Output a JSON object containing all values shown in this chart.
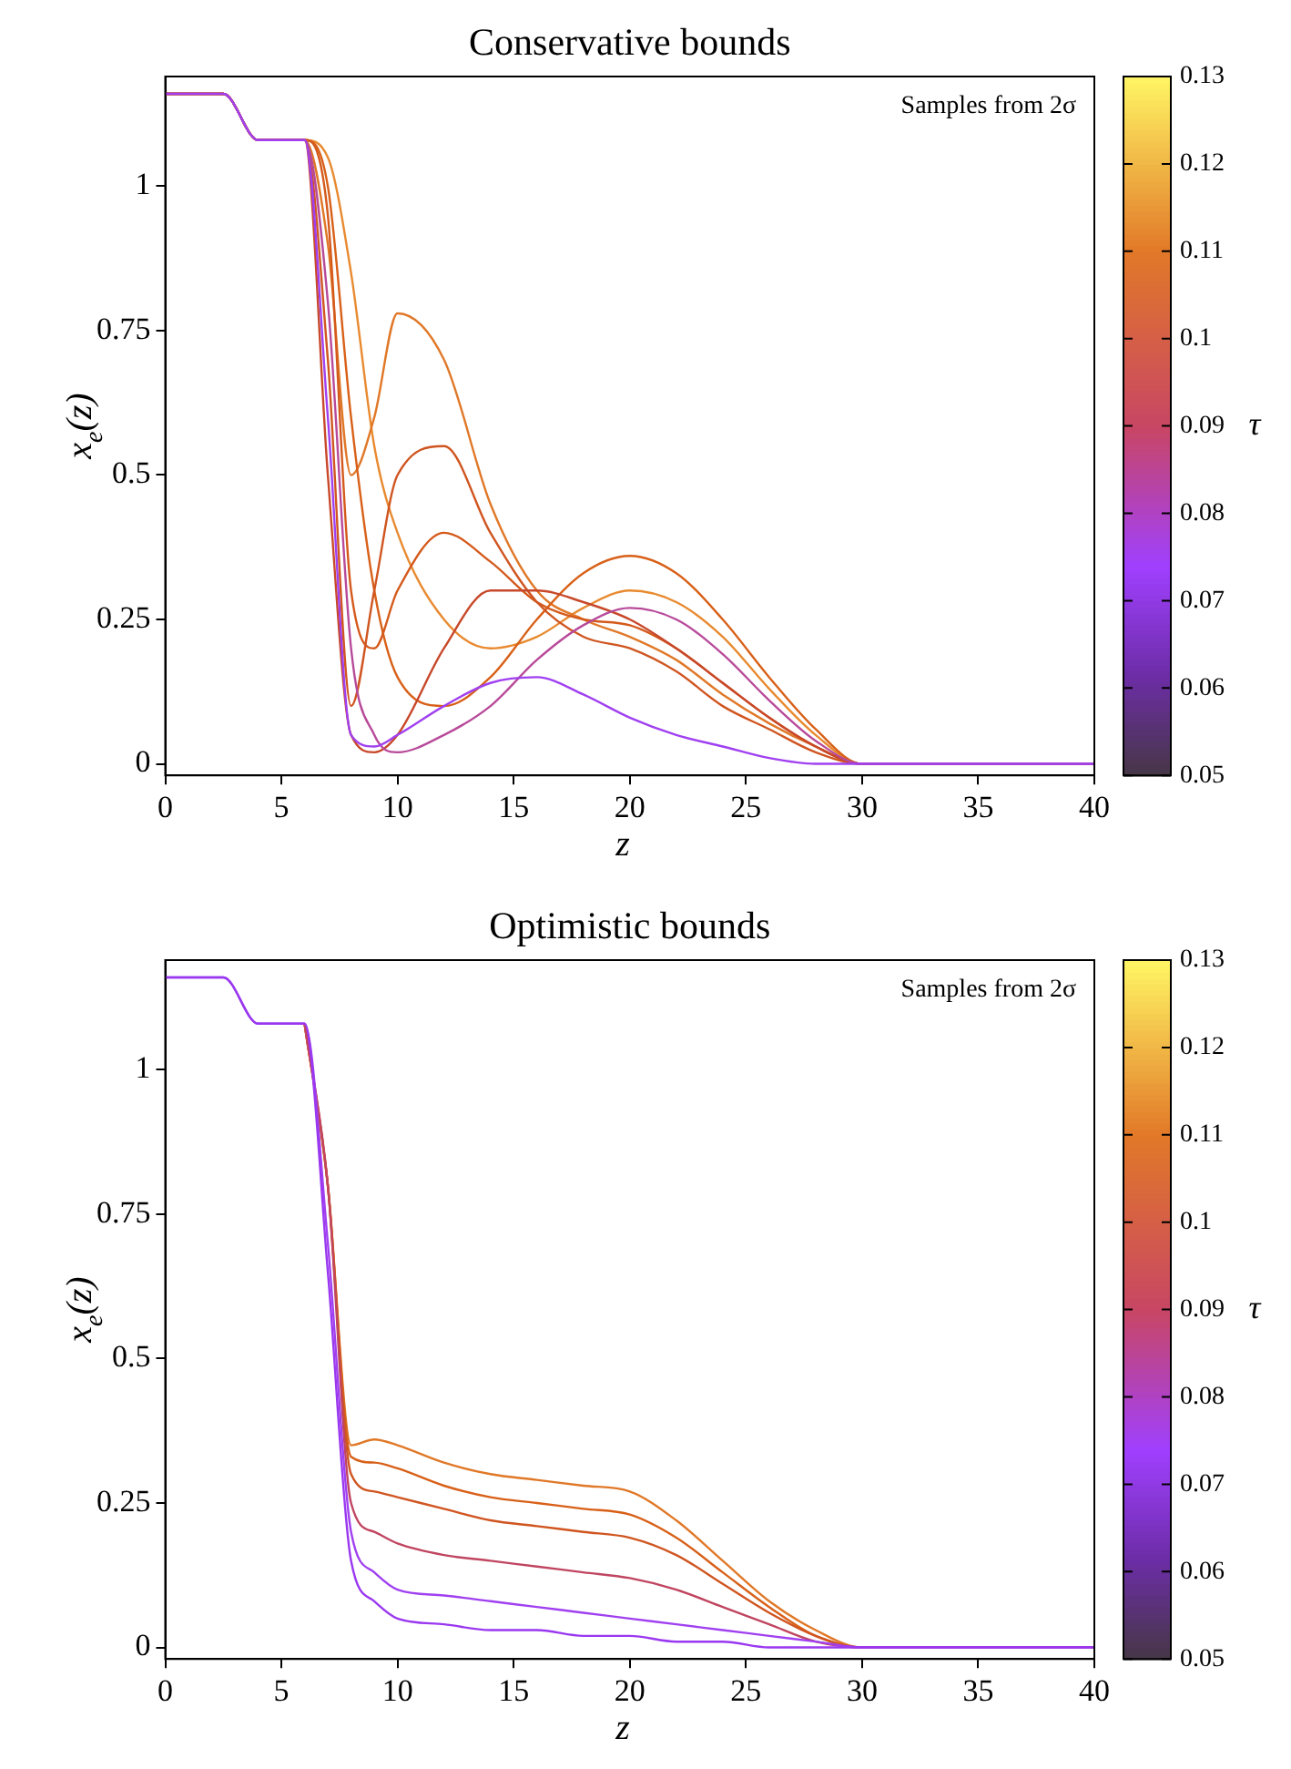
{
  "chart_data": [
    {
      "type": "line",
      "title": "Conservative bounds",
      "xlabel": "z",
      "ylabel": "x$_{e}$(z)",
      "clabel": "τ",
      "annotations": [
        "Samples from 2σ"
      ],
      "x": [
        0,
        2.5,
        4,
        6,
        7,
        8,
        9,
        10,
        12,
        14,
        16,
        18,
        20,
        22,
        24,
        26,
        28,
        30,
        35,
        40
      ],
      "xlim": [
        0,
        40
      ],
      "xticks": [
        0,
        5,
        10,
        15,
        20,
        25,
        30,
        35,
        40
      ],
      "ylim": [
        -0.02,
        1.19
      ],
      "yticks": [
        0,
        0.25,
        0.5,
        0.75,
        1
      ],
      "clim": [
        0.05,
        0.13
      ],
      "cticks": [
        0.05,
        0.06,
        0.07,
        0.08,
        0.09,
        0.1,
        0.11,
        0.12,
        0.13
      ],
      "grid": false,
      "legend": false,
      "marker": "none",
      "line_style": "solid",
      "series": [
        {
          "color": "#a040f0",
          "values": [
            1.16,
            1.16,
            1.08,
            1.08,
            0.6,
            0.05,
            0.03,
            0.05,
            0.1,
            0.14,
            0.15,
            0.12,
            0.08,
            0.05,
            0.03,
            0.01,
            0,
            0,
            0,
            0
          ]
        },
        {
          "color": "#b84a9a",
          "values": [
            1.16,
            1.16,
            1.08,
            1.08,
            0.8,
            0.2,
            0.05,
            0.02,
            0.05,
            0.1,
            0.18,
            0.24,
            0.27,
            0.25,
            0.19,
            0.11,
            0.04,
            0,
            0,
            0
          ]
        },
        {
          "color": "#c8482a",
          "values": [
            1.16,
            1.16,
            1.08,
            1.08,
            0.5,
            0.05,
            0.02,
            0.05,
            0.2,
            0.3,
            0.3,
            0.28,
            0.25,
            0.2,
            0.14,
            0.08,
            0.03,
            0,
            0,
            0
          ]
        },
        {
          "color": "#d05520",
          "values": [
            1.16,
            1.16,
            1.08,
            1.08,
            0.7,
            0.1,
            0.3,
            0.5,
            0.55,
            0.4,
            0.28,
            0.22,
            0.2,
            0.16,
            0.1,
            0.06,
            0.02,
            0,
            0,
            0
          ]
        },
        {
          "color": "#d45a1c",
          "values": [
            1.16,
            1.16,
            1.08,
            1.08,
            0.95,
            0.3,
            0.2,
            0.3,
            0.4,
            0.35,
            0.28,
            0.25,
            0.24,
            0.2,
            0.14,
            0.08,
            0.03,
            0,
            0,
            0
          ]
        },
        {
          "color": "#d86018",
          "values": [
            1.16,
            1.16,
            1.08,
            1.08,
            1.0,
            0.6,
            0.3,
            0.15,
            0.1,
            0.15,
            0.25,
            0.33,
            0.36,
            0.33,
            0.25,
            0.15,
            0.06,
            0,
            0,
            0
          ]
        },
        {
          "color": "#e07828",
          "values": [
            1.16,
            1.16,
            1.08,
            1.08,
            0.9,
            0.5,
            0.6,
            0.78,
            0.7,
            0.45,
            0.3,
            0.25,
            0.22,
            0.18,
            0.12,
            0.07,
            0.03,
            0,
            0,
            0
          ]
        },
        {
          "color": "#e88a30",
          "values": [
            1.16,
            1.16,
            1.08,
            1.08,
            1.05,
            0.85,
            0.55,
            0.4,
            0.25,
            0.2,
            0.22,
            0.27,
            0.3,
            0.28,
            0.22,
            0.13,
            0.05,
            0,
            0,
            0
          ]
        }
      ]
    },
    {
      "type": "line",
      "title": "Optimistic bounds",
      "xlabel": "z",
      "ylabel": "x$_{e}$(z)",
      "clabel": "τ",
      "annotations": [
        "Samples from 2σ"
      ],
      "x": [
        0,
        2.5,
        4,
        6,
        7,
        8,
        9,
        10,
        12,
        14,
        16,
        18,
        20,
        22,
        24,
        26,
        28,
        30,
        35,
        40
      ],
      "xlim": [
        0,
        40
      ],
      "xticks": [
        0,
        5,
        10,
        15,
        20,
        25,
        30,
        35,
        40
      ],
      "ylim": [
        -0.02,
        1.19
      ],
      "yticks": [
        0,
        0.25,
        0.5,
        0.75,
        1
      ],
      "clim": [
        0.05,
        0.13
      ],
      "cticks": [
        0.05,
        0.06,
        0.07,
        0.08,
        0.09,
        0.1,
        0.11,
        0.12,
        0.13
      ],
      "grid": false,
      "legend": false,
      "marker": "none",
      "line_style": "solid",
      "series": [
        {
          "color": "#9a38f0",
          "values": [
            1.16,
            1.16,
            1.08,
            1.08,
            0.65,
            0.15,
            0.08,
            0.05,
            0.04,
            0.03,
            0.03,
            0.02,
            0.02,
            0.01,
            0.01,
            0,
            0,
            0,
            0,
            0
          ]
        },
        {
          "color": "#a040f0",
          "values": [
            1.16,
            1.16,
            1.08,
            1.08,
            0.7,
            0.2,
            0.13,
            0.1,
            0.09,
            0.08,
            0.07,
            0.06,
            0.05,
            0.04,
            0.03,
            0.02,
            0.01,
            0,
            0,
            0
          ]
        },
        {
          "color": "#c04560",
          "values": [
            null,
            null,
            null,
            1.08,
            0.8,
            0.25,
            0.2,
            0.18,
            0.16,
            0.15,
            0.14,
            0.13,
            0.12,
            0.1,
            0.07,
            0.04,
            0.01,
            0,
            0,
            0
          ]
        },
        {
          "color": "#d05520",
          "values": [
            null,
            null,
            null,
            1.08,
            0.8,
            0.3,
            0.27,
            0.26,
            0.24,
            0.22,
            0.21,
            0.2,
            0.19,
            0.16,
            0.11,
            0.06,
            0.02,
            0,
            0,
            0
          ]
        },
        {
          "color": "#d86018",
          "values": [
            null,
            null,
            null,
            1.08,
            0.8,
            0.33,
            0.32,
            0.31,
            0.28,
            0.26,
            0.25,
            0.24,
            0.23,
            0.19,
            0.13,
            0.07,
            0.02,
            0,
            0,
            0
          ]
        },
        {
          "color": "#e07828",
          "values": [
            null,
            null,
            null,
            1.08,
            0.8,
            0.35,
            0.36,
            0.35,
            0.32,
            0.3,
            0.29,
            0.28,
            0.27,
            0.22,
            0.15,
            0.08,
            0.03,
            0,
            0,
            0
          ]
        }
      ]
    }
  ]
}
